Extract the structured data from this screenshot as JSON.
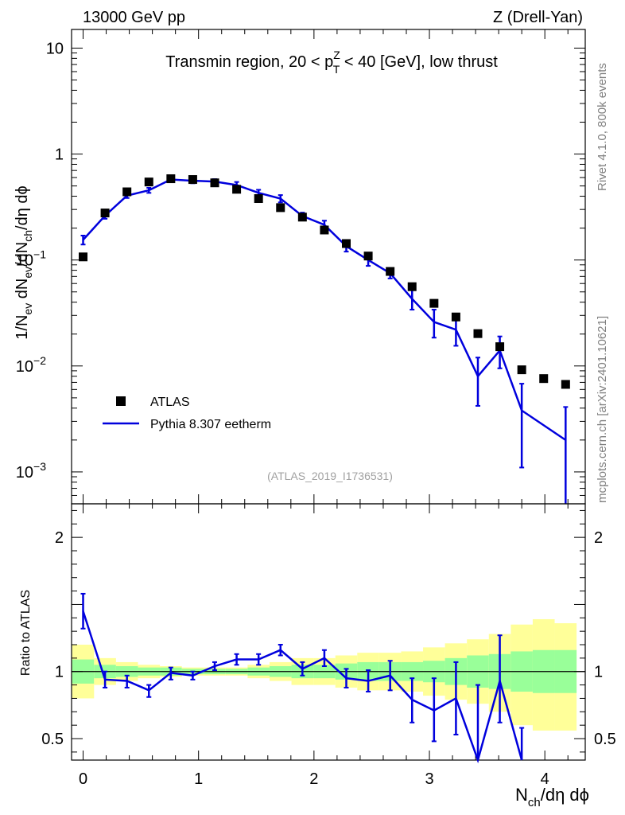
{
  "header": {
    "left": "13000 GeV pp",
    "right": "Z (Drell-Yan)"
  },
  "side_labels": {
    "rivet": "Rivet 4.1.0,  800k events",
    "mcplots": "mcplots.cern.ch [arXiv:2401.10621]"
  },
  "colors": {
    "mc": "#0000dd",
    "data": "#000000",
    "band_inner": "#99ff99",
    "band_outer": "#ffff99"
  },
  "chart_data": [
    {
      "type": "scatter",
      "title": "Transmin region, 20 < p_T^Z < 40 [GeV], low thrust",
      "title_parts": {
        "pre": "Transmin region, 20 < p",
        "sup": "Z",
        "sub": "T",
        "post": " < 40 [GeV], low thrust"
      },
      "analysis_id": "(ATLAS_2019_I1736531)",
      "ylabel": "1/N_ev dN_ev/dN_ch/dη dϕ",
      "yscale": "log",
      "ylim": [
        0.0005,
        15
      ],
      "xlim": [
        -0.1,
        4.35
      ],
      "x_ticks": [
        0,
        1,
        2,
        3,
        4
      ],
      "y_ticks": [
        {
          "value": 0.001,
          "base": "10",
          "exp": "−3"
        },
        {
          "value": 0.01,
          "base": "10",
          "exp": "−2"
        },
        {
          "value": 0.1,
          "base": "10",
          "exp": "−1"
        },
        {
          "value": 1,
          "label": "1"
        },
        {
          "value": 10,
          "label": "10"
        }
      ],
      "legend": {
        "position": "bottom-left",
        "data_label": "ATLAS",
        "mc_label": "Pythia 8.307 eetherm"
      },
      "series": [
        {
          "name": "ATLAS",
          "style": "markers",
          "x": [
            0.0,
            0.19,
            0.38,
            0.57,
            0.76,
            0.95,
            1.14,
            1.33,
            1.52,
            1.71,
            1.9,
            2.09,
            2.28,
            2.47,
            2.66,
            2.85,
            3.04,
            3.23,
            3.42,
            3.61,
            3.8,
            3.99,
            4.18
          ],
          "y": [
            0.107,
            0.278,
            0.44,
            0.545,
            0.585,
            0.575,
            0.535,
            0.465,
            0.38,
            0.312,
            0.254,
            0.192,
            0.143,
            0.109,
            0.078,
            0.056,
            0.039,
            0.029,
            0.0202,
            0.0152,
            0.0092,
            0.0076,
            0.0067
          ]
        },
        {
          "name": "Pythia 8.307 eetherm",
          "style": "line",
          "x": [
            0.0,
            0.19,
            0.38,
            0.57,
            0.76,
            0.95,
            1.14,
            1.33,
            1.52,
            1.71,
            1.9,
            2.09,
            2.28,
            2.47,
            2.66,
            2.85,
            3.04,
            3.23,
            3.42,
            3.61,
            3.8,
            4.18
          ],
          "y": [
            0.155,
            0.262,
            0.405,
            0.455,
            0.575,
            0.56,
            0.55,
            0.51,
            0.43,
            0.38,
            0.26,
            0.215,
            0.135,
            0.1,
            0.075,
            0.043,
            0.026,
            0.022,
            0.008,
            0.014,
            0.0038,
            0.002
          ],
          "yerr_lo": [
            0.14,
            0.245,
            0.385,
            0.43,
            0.545,
            0.53,
            0.52,
            0.475,
            0.4,
            0.35,
            0.24,
            0.195,
            0.12,
            0.088,
            0.067,
            0.034,
            0.0185,
            0.0155,
            0.0042,
            0.0095,
            0.0011,
            0.0003
          ],
          "yerr_hi": [
            0.17,
            0.28,
            0.425,
            0.48,
            0.605,
            0.59,
            0.58,
            0.545,
            0.46,
            0.41,
            0.28,
            0.235,
            0.15,
            0.112,
            0.083,
            0.052,
            0.034,
            0.029,
            0.012,
            0.019,
            0.0068,
            0.0041
          ]
        }
      ]
    },
    {
      "type": "line",
      "title": "",
      "xlabel": "N_ch/dη dϕ",
      "ylabel": "Ratio to ATLAS",
      "yscale": "linear",
      "ylim": [
        0.34,
        2.25
      ],
      "xlim": [
        -0.1,
        4.35
      ],
      "x_ticks": [
        0,
        1,
        2,
        3,
        4
      ],
      "y_ticks": [
        0.5,
        1,
        2
      ],
      "reference_line": 1,
      "bands": {
        "x_edges": [
          -0.095,
          0.095,
          0.285,
          0.475,
          0.665,
          0.855,
          1.045,
          1.235,
          1.425,
          1.615,
          1.805,
          1.995,
          2.185,
          2.375,
          2.565,
          2.755,
          2.945,
          3.135,
          3.325,
          3.515,
          3.705,
          3.895,
          4.085,
          4.275
        ],
        "inner_lo": [
          0.91,
          0.95,
          0.96,
          0.97,
          0.97,
          0.98,
          0.98,
          0.98,
          0.97,
          0.96,
          0.95,
          0.95,
          0.94,
          0.93,
          0.93,
          0.93,
          0.92,
          0.9,
          0.88,
          0.87,
          0.85,
          0.84,
          0.84
        ],
        "inner_hi": [
          1.09,
          1.05,
          1.04,
          1.03,
          1.03,
          1.02,
          1.02,
          1.02,
          1.03,
          1.04,
          1.05,
          1.05,
          1.06,
          1.07,
          1.07,
          1.07,
          1.08,
          1.1,
          1.12,
          1.13,
          1.15,
          1.16,
          1.16
        ],
        "outer_lo": [
          0.8,
          0.9,
          0.93,
          0.95,
          0.96,
          0.97,
          0.97,
          0.97,
          0.95,
          0.93,
          0.9,
          0.9,
          0.88,
          0.86,
          0.86,
          0.85,
          0.82,
          0.79,
          0.76,
          0.7,
          0.6,
          0.56,
          0.56
        ],
        "outer_hi": [
          1.2,
          1.1,
          1.07,
          1.05,
          1.04,
          1.03,
          1.03,
          1.03,
          1.05,
          1.07,
          1.1,
          1.1,
          1.12,
          1.14,
          1.14,
          1.15,
          1.18,
          1.21,
          1.24,
          1.28,
          1.35,
          1.39,
          1.36
        ]
      },
      "series": [
        {
          "name": "Pythia 8.307 eetherm / ATLAS",
          "x": [
            0.0,
            0.19,
            0.38,
            0.57,
            0.76,
            0.95,
            1.14,
            1.33,
            1.52,
            1.71,
            1.9,
            2.09,
            2.28,
            2.47,
            2.66,
            2.85,
            3.04,
            3.23,
            3.42,
            3.61,
            3.8
          ],
          "y": [
            1.45,
            0.94,
            0.93,
            0.86,
            0.99,
            0.97,
            1.04,
            1.09,
            1.09,
            1.16,
            1.02,
            1.1,
            0.95,
            0.93,
            0.97,
            0.79,
            0.71,
            0.8,
            0.33,
            0.93,
            0.33
          ],
          "yerr_lo": [
            1.32,
            0.88,
            0.88,
            0.81,
            0.94,
            0.94,
            1.01,
            1.05,
            1.05,
            1.12,
            0.97,
            1.04,
            0.88,
            0.85,
            0.86,
            0.62,
            0.48,
            0.53,
            0.2,
            0.62,
            0.12
          ],
          "yerr_hi": [
            1.58,
            1.0,
            0.97,
            0.9,
            1.03,
            1.0,
            1.07,
            1.13,
            1.13,
            1.2,
            1.07,
            1.16,
            1.02,
            1.01,
            1.08,
            0.95,
            0.95,
            1.07,
            0.9,
            1.27,
            0.58
          ]
        }
      ]
    }
  ]
}
